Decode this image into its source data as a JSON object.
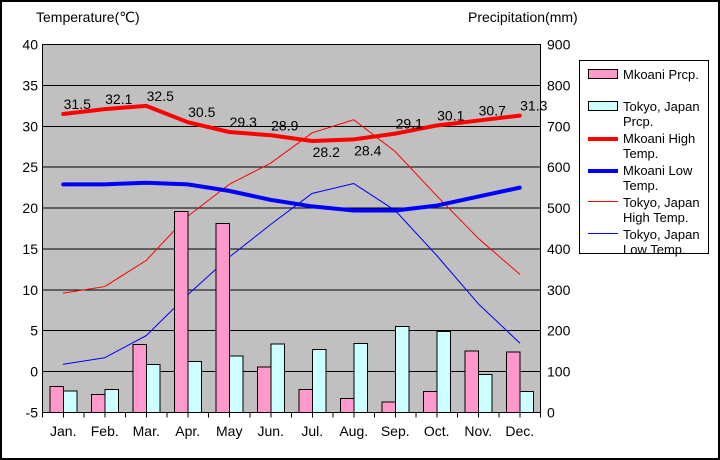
{
  "titles": {
    "left": "Temperature(℃)",
    "right": "Precipitation(mm)"
  },
  "colors": {
    "plot_background": "#c0c0c0",
    "gridline": "#000000",
    "mkoani_precip": "#ff99cc",
    "tokyo_precip": "#ccffff",
    "high_temp_line": "#ff0000",
    "low_temp_line": "#0000ff",
    "text": "#000000",
    "legend_background": "#ffffff"
  },
  "chart_data": {
    "type": "combo-bar-line",
    "title": "",
    "categories": [
      "Jan.",
      "Feb.",
      "Mar.",
      "Apr.",
      "May",
      "Jun.",
      "Jul.",
      "Aug.",
      "Sep.",
      "Oct.",
      "Nov.",
      "Dec."
    ],
    "temp_axis": {
      "title": "Temperature(℃)",
      "min": -5,
      "max": 40,
      "step": 5,
      "tick_labels": [
        "40",
        "35",
        "30",
        "25",
        "20",
        "15",
        "10",
        "5",
        "0",
        "-5"
      ],
      "side": "left"
    },
    "precip_axis": {
      "title": "Precipitation(mm)",
      "min": 0,
      "max": 900,
      "step": 100,
      "tick_labels": [
        "900",
        "800",
        "700",
        "600",
        "500",
        "400",
        "300",
        "200",
        "100",
        "0"
      ],
      "side": "right"
    },
    "grid": "horizontal",
    "legend_position": "right",
    "series": [
      {
        "name": "Mkoani Prcp.",
        "slug": "mkoani-prcp",
        "type": "bar",
        "axis": "precip",
        "color": "#ff99cc",
        "values": [
          64,
          44,
          166,
          492,
          462,
          111,
          56,
          34,
          26,
          51,
          150,
          148
        ]
      },
      {
        "name": "Tokyo, Japan Prcp.",
        "slug": "tokyo-prcp",
        "type": "bar",
        "axis": "precip",
        "color": "#ccffff",
        "values": [
          52.3,
          56.1,
          117.5,
          124.5,
          137.8,
          167.7,
          153.5,
          168.2,
          209.9,
          197.8,
          92.5,
          51.0
        ]
      },
      {
        "name": "Mkoani High Temp.",
        "slug": "mkoani-high-temp",
        "type": "line",
        "axis": "temp",
        "color": "#ff0000",
        "stroke_width": 4,
        "values": [
          31.5,
          32.1,
          32.5,
          30.5,
          29.3,
          28.9,
          28.2,
          28.4,
          29.1,
          30.1,
          30.7,
          31.3
        ],
        "point_labels": [
          "31.5",
          "32.1",
          "32.5",
          "30.5",
          "29.3",
          "28.9",
          "28.2",
          "28.4",
          "29.1",
          "30.1",
          "30.7",
          "31.3"
        ]
      },
      {
        "name": "Mkoani Low Temp.",
        "slug": "mkoani-low-temp",
        "type": "line",
        "axis": "temp",
        "color": "#0000ff",
        "stroke_width": 4,
        "values": [
          22.9,
          22.9,
          23.1,
          22.9,
          22.1,
          21.0,
          20.2,
          19.7,
          19.7,
          20.3,
          21.4,
          22.5
        ]
      },
      {
        "name": "Tokyo, Japan High Temp.",
        "slug": "tokyo-high-temp",
        "type": "line",
        "axis": "temp",
        "color": "#ff0000",
        "stroke_width": 1,
        "values": [
          9.6,
          10.4,
          13.6,
          19.0,
          22.9,
          25.5,
          29.2,
          30.8,
          26.9,
          21.5,
          16.3,
          11.9
        ]
      },
      {
        "name": "Tokyo, Japan Low Temp.",
        "slug": "tokyo-low-temp",
        "type": "line",
        "axis": "temp",
        "color": "#0000ff",
        "stroke_width": 1,
        "values": [
          0.9,
          1.7,
          4.4,
          9.4,
          14.0,
          18.0,
          21.8,
          23.0,
          19.7,
          14.2,
          8.3,
          3.5
        ]
      }
    ]
  }
}
